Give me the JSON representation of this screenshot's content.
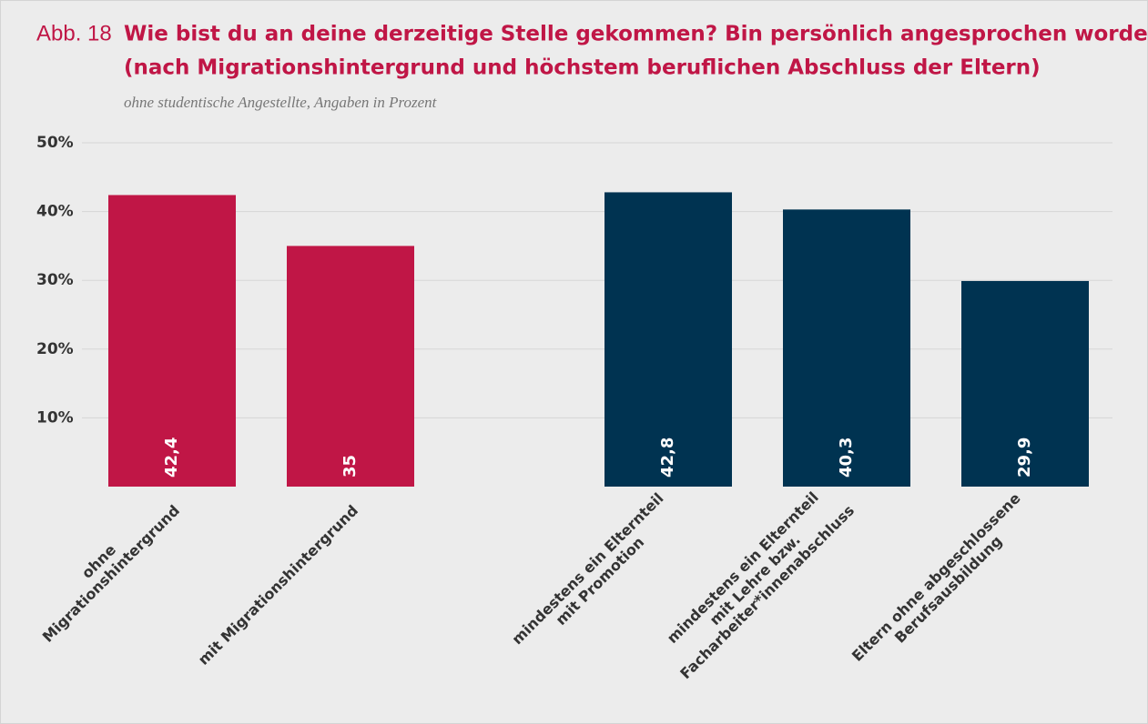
{
  "chart_data": {
    "type": "bar",
    "figure_label": "Abb. 18",
    "title": [
      "Wie bist du an deine derzeitige Stelle gekommen? Bin persönlich angesprochen worden",
      "(nach Migrationshintergrund und höchstem beruflichen Abschluss der Eltern)"
    ],
    "subtitle": "ohne studentische Angestellte, Angaben in Prozent",
    "categories": [
      [
        "ohne",
        "Migrationshintergrund"
      ],
      [
        "mit Migrationshintergrund"
      ],
      [
        "mindestens ein Elternteil",
        "mit Promotion"
      ],
      [
        "mindestens ein Elternteil",
        "mit Lehre bzw.",
        "Facharbeiter*innenabschluss"
      ],
      [
        "Eltern ohne abgeschlossene",
        "Berufsausbildung"
      ]
    ],
    "values": [
      42.4,
      35,
      42.8,
      40.3,
      29.9
    ],
    "value_labels": [
      "42,4",
      "35",
      "42,8",
      "40,3",
      "29,9"
    ],
    "colors": [
      "#c01646",
      "#c01646",
      "#003351",
      "#003351",
      "#003351"
    ],
    "ylim": [
      0,
      50
    ],
    "yticks": [
      {
        "value": 10,
        "label": "10%"
      },
      {
        "value": 20,
        "label": "20%"
      },
      {
        "value": 30,
        "label": "30%"
      },
      {
        "value": 40,
        "label": "40%"
      },
      {
        "value": 50,
        "label": "50%"
      }
    ],
    "grid": true
  }
}
